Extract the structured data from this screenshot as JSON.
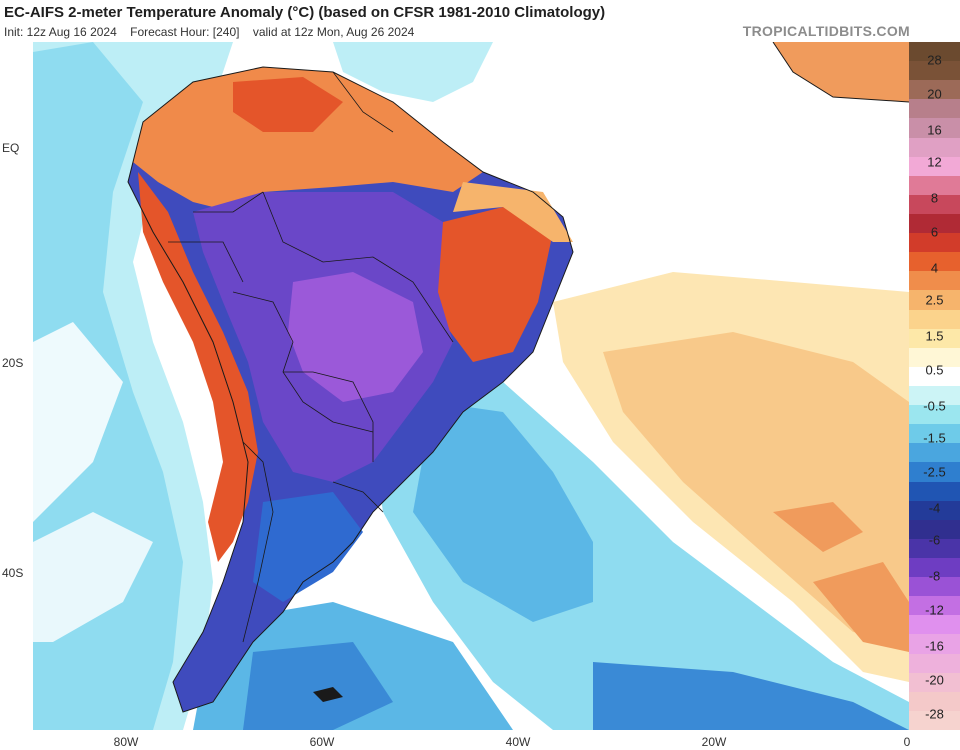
{
  "header": {
    "title": "EC-AIFS 2-meter Temperature Anomaly (°C) (based on CFSR 1981-2010 Climatology)",
    "init": "Init: 12z Aug 16 2024",
    "forecast_hour": "Forecast Hour: [240]",
    "valid": "valid at 12z Mon, Aug 26 2024",
    "brand": "TROPICALTIDBITS.COM"
  },
  "axes": {
    "lat_labels": [
      "EQ",
      "20S",
      "40S"
    ],
    "lon_labels": [
      "80W",
      "60W",
      "40W",
      "20W",
      "0"
    ]
  },
  "legend": {
    "labels": [
      "28",
      "20",
      "16",
      "12",
      "8",
      "6",
      "4",
      "2.5",
      "1.5",
      "0.5",
      "-0.5",
      "-1.5",
      "-2.5",
      "-4",
      "-6",
      "-8",
      "-12",
      "-16",
      "-20",
      "-28"
    ],
    "colors": [
      "#6b4a2f",
      "#7a5237",
      "#9c6a58",
      "#b77f8b",
      "#c98fa8",
      "#e0a0c4",
      "#f2a9d6",
      "#e07a97",
      "#c8485c",
      "#b02a35",
      "#d23c2a",
      "#e7612d",
      "#f08d4b",
      "#f6b46c",
      "#fbd38c",
      "#fde8a8",
      "#fff7d6",
      "#ffffff",
      "#ccf4f6",
      "#9be6ef",
      "#6ecbe9",
      "#4aa6df",
      "#2f7fcf",
      "#2055b3",
      "#233b99",
      "#302f8f",
      "#4a34a8",
      "#6e3dc2",
      "#9a52d6",
      "#c36fe3",
      "#e090ee",
      "#e9a3e6",
      "#eeb1dc",
      "#f2bfd2",
      "#f4c9c9",
      "#f6d3cf"
    ]
  },
  "map": {
    "ocean_colors": {
      "near_normal": "#ffffff",
      "slight_cool": "#bdeef6",
      "cool": "#8fdcf0",
      "cold": "#5bb7e6",
      "colder": "#3a8ad6",
      "warm": "#fde6b3",
      "warmer": "#f8c98a",
      "hot": "#f09b5c"
    },
    "land_colors": {
      "cold_core": "#9b59d9",
      "very_cold": "#6a47c8",
      "cold": "#3f4bbd",
      "moderate_cold": "#2f6ad0",
      "hot": "#e4552a",
      "warm": "#f08a4a",
      "mild": "#f6b46c"
    }
  }
}
